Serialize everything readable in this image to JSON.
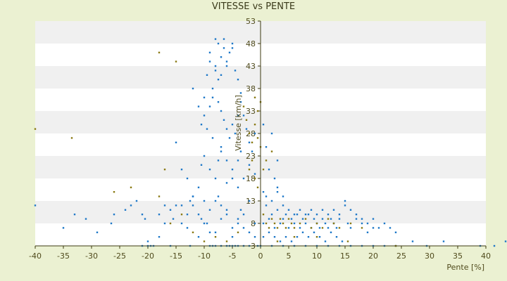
{
  "chart_data": {
    "type": "scatter",
    "title": "VITESSE vs PENTE",
    "xlabel": "Pente [%]",
    "ylabel": "Vitesse [km/h]",
    "xlim": [
      -40,
      40
    ],
    "ylim": [
      3,
      53
    ],
    "x_ticks": [
      "-40",
      "-35",
      "-30",
      "-25",
      "-20",
      "-15",
      "-10",
      "-5",
      "0",
      "5",
      "10",
      "15",
      "20",
      "25",
      "30",
      "35",
      "40"
    ],
    "y_ticks": [
      "3",
      "8",
      "13",
      "18",
      "23",
      "28",
      "33",
      "38",
      "43",
      "48",
      "53"
    ],
    "grid": "horizontal bands",
    "legend": "none",
    "colors": {
      "background": "#ebf1d2",
      "plot_light": "#ffffff",
      "plot_band": "#f0f0f0",
      "axis": "#3d3a10",
      "series_blue": "#1e78c8",
      "series_olive": "#8a7a14"
    },
    "series": [
      {
        "color": "#1e78c8",
        "points": [
          [
            -40,
            12
          ],
          [
            -33,
            10
          ],
          [
            -35,
            7
          ],
          [
            -31,
            9
          ],
          [
            -29,
            6
          ],
          [
            -26.5,
            8
          ],
          [
            -26,
            10
          ],
          [
            -24,
            11
          ],
          [
            -23,
            12
          ],
          [
            -22,
            13
          ],
          [
            -21,
            10
          ],
          [
            -20.5,
            9
          ],
          [
            -20,
            4
          ],
          [
            -19,
            3
          ],
          [
            -18,
            5
          ],
          [
            -17,
            8
          ],
          [
            -16,
            11
          ],
          [
            -15,
            12
          ],
          [
            -14,
            8
          ],
          [
            -13,
            10
          ],
          [
            -12.5,
            13
          ],
          [
            -12,
            12
          ],
          [
            -11,
            5
          ],
          [
            -10.5,
            9
          ],
          [
            -10,
            13
          ],
          [
            -9.5,
            8
          ],
          [
            -9,
            11
          ],
          [
            -8,
            6
          ],
          [
            -7.5,
            14
          ],
          [
            -7,
            12
          ],
          [
            -6,
            10
          ],
          [
            -5,
            7
          ],
          [
            -4,
            9
          ],
          [
            -3.5,
            11
          ],
          [
            -3,
            7
          ],
          [
            -2,
            6
          ],
          [
            -1,
            5
          ],
          [
            -20,
            3
          ],
          [
            -21,
            3
          ],
          [
            -19.5,
            3
          ],
          [
            -16,
            3
          ],
          [
            -12.5,
            3
          ],
          [
            -9,
            3
          ],
          [
            -8.5,
            3
          ],
          [
            -8,
            3
          ],
          [
            -7,
            3
          ],
          [
            -6,
            3
          ],
          [
            -5.5,
            3
          ],
          [
            -5,
            3
          ],
          [
            -4.5,
            3
          ],
          [
            -4,
            3
          ],
          [
            -3,
            3
          ],
          [
            -2,
            3
          ],
          [
            -0.5,
            3
          ],
          [
            -18,
            10
          ],
          [
            -17,
            12
          ],
          [
            -15.5,
            9
          ],
          [
            -14,
            12
          ],
          [
            -13,
            7
          ],
          [
            -12,
            14
          ],
          [
            -11,
            10
          ],
          [
            -10,
            8
          ],
          [
            -9,
            6
          ],
          [
            -8,
            13
          ],
          [
            -7,
            9
          ],
          [
            -6,
            11
          ],
          [
            -5,
            5
          ],
          [
            -4,
            8
          ],
          [
            -3,
            10
          ],
          [
            -2,
            13
          ],
          [
            -1,
            8
          ],
          [
            -15,
            26
          ],
          [
            -14,
            20
          ],
          [
            -13,
            18
          ],
          [
            -12,
            14
          ],
          [
            -11,
            16
          ],
          [
            -10.5,
            21
          ],
          [
            -10,
            23
          ],
          [
            -9,
            20
          ],
          [
            -8,
            18
          ],
          [
            -7.5,
            22
          ],
          [
            -7,
            25
          ],
          [
            -6,
            17
          ],
          [
            -5,
            20
          ],
          [
            -4,
            22
          ],
          [
            -3.5,
            24
          ],
          [
            -3,
            18
          ],
          [
            -2,
            21
          ],
          [
            -1,
            19
          ],
          [
            -12,
            38
          ],
          [
            -11,
            34
          ],
          [
            -10.5,
            30
          ],
          [
            -10,
            36
          ],
          [
            -9.5,
            41
          ],
          [
            -9,
            44
          ],
          [
            -8.5,
            38
          ],
          [
            -8,
            42
          ],
          [
            -7.5,
            35
          ],
          [
            -7,
            33
          ],
          [
            -6.5,
            31
          ],
          [
            -6,
            29
          ],
          [
            -5.5,
            27
          ],
          [
            -5,
            30
          ],
          [
            -4.5,
            28
          ],
          [
            -4,
            32
          ],
          [
            -3.5,
            35
          ],
          [
            -3,
            32
          ],
          [
            -2.5,
            29
          ],
          [
            -2,
            26
          ],
          [
            -1.5,
            24
          ],
          [
            -1,
            28
          ],
          [
            -9,
            46
          ],
          [
            -8,
            43
          ],
          [
            -7.5,
            40
          ],
          [
            -7,
            45
          ],
          [
            -6.5,
            47
          ],
          [
            -6,
            44
          ],
          [
            -5.5,
            46
          ],
          [
            -5,
            48
          ],
          [
            -4.5,
            42
          ],
          [
            -4,
            40
          ],
          [
            -3.5,
            37
          ],
          [
            -6.5,
            49
          ],
          [
            -7.5,
            48
          ],
          [
            -8,
            49
          ],
          [
            -5,
            47
          ],
          [
            -6,
            43
          ],
          [
            -7,
            41
          ],
          [
            -8.5,
            36
          ],
          [
            -9,
            34
          ],
          [
            -10,
            32
          ],
          [
            -9.5,
            29
          ],
          [
            -8.5,
            27
          ],
          [
            -7,
            24
          ],
          [
            -6,
            22
          ],
          [
            -5,
            18
          ],
          [
            -4,
            16
          ],
          [
            0,
            3
          ],
          [
            0.5,
            8
          ],
          [
            1,
            12
          ],
          [
            1.5,
            9
          ],
          [
            2,
            10
          ],
          [
            2.5,
            7
          ],
          [
            3,
            11
          ],
          [
            3.5,
            8
          ],
          [
            4,
            9
          ],
          [
            4.5,
            10
          ],
          [
            5,
            7
          ],
          [
            5.5,
            9
          ],
          [
            6,
            8
          ],
          [
            6.5,
            10
          ],
          [
            7,
            7
          ],
          [
            7.5,
            9
          ],
          [
            8,
            8
          ],
          [
            8.5,
            10
          ],
          [
            9,
            7
          ],
          [
            9.5,
            9
          ],
          [
            10,
            8
          ],
          [
            10.5,
            7
          ],
          [
            11,
            9
          ],
          [
            11.5,
            8
          ],
          [
            12,
            7
          ],
          [
            12.5,
            9
          ],
          [
            13,
            8
          ],
          [
            13.5,
            7
          ],
          [
            14,
            9
          ],
          [
            15,
            13
          ],
          [
            15.5,
            8
          ],
          [
            16,
            7
          ],
          [
            17,
            9
          ],
          [
            18,
            8
          ],
          [
            19,
            6
          ],
          [
            20,
            7
          ],
          [
            1,
            14
          ],
          [
            2,
            13
          ],
          [
            3,
            15
          ],
          [
            4,
            12
          ],
          [
            5,
            11
          ],
          [
            6,
            10
          ],
          [
            7,
            11
          ],
          [
            8,
            10
          ],
          [
            9,
            11
          ],
          [
            10,
            10
          ],
          [
            11,
            11
          ],
          [
            12,
            10
          ],
          [
            13,
            11
          ],
          [
            14,
            10
          ],
          [
            0.5,
            5
          ],
          [
            1.5,
            6
          ],
          [
            2.5,
            5
          ],
          [
            3.5,
            4
          ],
          [
            4.5,
            5
          ],
          [
            5.5,
            4
          ],
          [
            6.5,
            5
          ],
          [
            7.5,
            6
          ],
          [
            8.5,
            5
          ],
          [
            9.5,
            6
          ],
          [
            10.5,
            5
          ],
          [
            11.5,
            4
          ],
          [
            12.5,
            6
          ],
          [
            13.5,
            5
          ],
          [
            14.5,
            4
          ],
          [
            2,
            3
          ],
          [
            4,
            3
          ],
          [
            6,
            3
          ],
          [
            8,
            3
          ],
          [
            10,
            3
          ],
          [
            12,
            3
          ],
          [
            14,
            3
          ],
          [
            16,
            3
          ],
          [
            18,
            3
          ],
          [
            20,
            3
          ],
          [
            22,
            3
          ],
          [
            24,
            3
          ],
          [
            27,
            4
          ],
          [
            29.5,
            3
          ],
          [
            32.5,
            4
          ],
          [
            39,
            3
          ],
          [
            41.5,
            3
          ],
          [
            43.5,
            4
          ],
          [
            22,
            8
          ],
          [
            23,
            7
          ],
          [
            24,
            6
          ],
          [
            18,
            9
          ],
          [
            17,
            10
          ],
          [
            16,
            11
          ],
          [
            15,
            12
          ],
          [
            19,
            8
          ],
          [
            20,
            9
          ],
          [
            21,
            7
          ],
          [
            1,
            25
          ],
          [
            2,
            28
          ],
          [
            3,
            22
          ],
          [
            0.5,
            30
          ],
          [
            1.5,
            20
          ],
          [
            2.5,
            18
          ],
          [
            0.5,
            15
          ],
          [
            3,
            16
          ],
          [
            4,
            14
          ]
        ]
      },
      {
        "color": "#8a7a14",
        "points": [
          [
            -40,
            29
          ],
          [
            -33.5,
            27
          ],
          [
            -26,
            15
          ],
          [
            -23,
            16
          ],
          [
            -18,
            46
          ],
          [
            -17,
            20
          ],
          [
            -15,
            44
          ],
          [
            -18,
            14
          ],
          [
            -16,
            8
          ],
          [
            -14,
            10
          ],
          [
            -12,
            6
          ],
          [
            -10,
            4
          ],
          [
            -8,
            5
          ],
          [
            -6,
            4
          ],
          [
            -4,
            6
          ],
          [
            -3,
            34
          ],
          [
            -2.5,
            31
          ],
          [
            -2,
            28
          ],
          [
            -1.5,
            26
          ],
          [
            -1,
            36
          ],
          [
            -0.5,
            33
          ],
          [
            0,
            35
          ],
          [
            -1,
            30
          ],
          [
            -0.5,
            27
          ],
          [
            0,
            25
          ],
          [
            -1.5,
            22
          ],
          [
            -2,
            20
          ],
          [
            -1,
            18
          ],
          [
            -0.5,
            16
          ],
          [
            0.5,
            10
          ],
          [
            1,
            8
          ],
          [
            1.5,
            7
          ],
          [
            2,
            9
          ],
          [
            2.5,
            8
          ],
          [
            3,
            7
          ],
          [
            3.5,
            9
          ],
          [
            4,
            8
          ],
          [
            4.5,
            7
          ],
          [
            5,
            9
          ],
          [
            5.5,
            8
          ],
          [
            6,
            7
          ],
          [
            7,
            8
          ],
          [
            8,
            9
          ],
          [
            9,
            7
          ],
          [
            10,
            8
          ],
          [
            11,
            7
          ],
          [
            12,
            9
          ],
          [
            13,
            8
          ],
          [
            14,
            7
          ],
          [
            16,
            8
          ],
          [
            18,
            7
          ],
          [
            1,
            22
          ],
          [
            2,
            24
          ],
          [
            0.5,
            20
          ],
          [
            15.5,
            4
          ],
          [
            24,
            3
          ],
          [
            10,
            5
          ],
          [
            6,
            5
          ],
          [
            3,
            4
          ]
        ]
      }
    ]
  }
}
